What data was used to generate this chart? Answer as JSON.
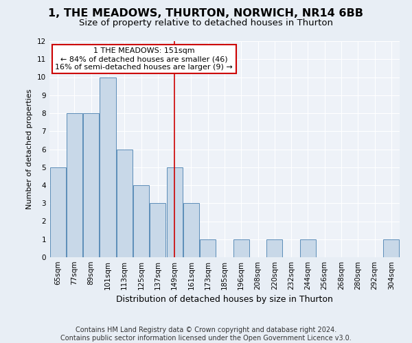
{
  "title": "1, THE MEADOWS, THURTON, NORWICH, NR14 6BB",
  "subtitle": "Size of property relative to detached houses in Thurton",
  "xlabel": "Distribution of detached houses by size in Thurton",
  "ylabel": "Number of detached properties",
  "categories": [
    "65sqm",
    "77sqm",
    "89sqm",
    "101sqm",
    "113sqm",
    "125sqm",
    "137sqm",
    "149sqm",
    "161sqm",
    "173sqm",
    "185sqm",
    "196sqm",
    "208sqm",
    "220sqm",
    "232sqm",
    "244sqm",
    "256sqm",
    "268sqm",
    "280sqm",
    "292sqm",
    "304sqm"
  ],
  "values": [
    5,
    8,
    8,
    10,
    6,
    4,
    3,
    5,
    3,
    1,
    0,
    1,
    0,
    1,
    0,
    1,
    0,
    0,
    0,
    0,
    1
  ],
  "bar_color": "#c8d8e8",
  "bar_edge_color": "#5b8db8",
  "red_line_x": 7.5,
  "annotation_line1": "1 THE MEADOWS: 151sqm",
  "annotation_line2": "← 84% of detached houses are smaller (46)",
  "annotation_line3": "16% of semi-detached houses are larger (9) →",
  "annotation_box_color": "#ffffff",
  "annotation_box_edge_color": "#cc0000",
  "ylim": [
    0,
    12
  ],
  "yticks": [
    0,
    1,
    2,
    3,
    4,
    5,
    6,
    7,
    8,
    9,
    10,
    11,
    12
  ],
  "footer_line1": "Contains HM Land Registry data © Crown copyright and database right 2024.",
  "footer_line2": "Contains public sector information licensed under the Open Government Licence v3.0.",
  "background_color": "#e8eef5",
  "plot_background_color": "#eef2f8",
  "grid_color": "#ffffff",
  "title_fontsize": 11.5,
  "subtitle_fontsize": 9.5,
  "xlabel_fontsize": 9,
  "ylabel_fontsize": 8,
  "tick_fontsize": 7.5,
  "footer_fontsize": 7,
  "annot_fontsize": 8
}
